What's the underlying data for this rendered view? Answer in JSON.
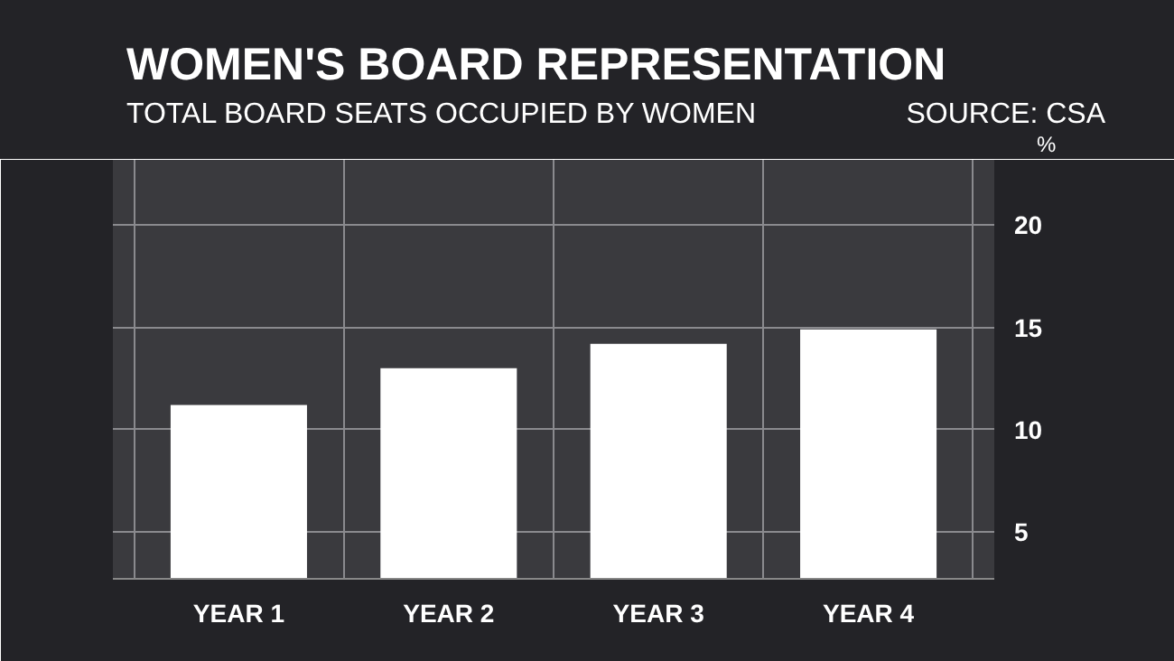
{
  "chart_data": {
    "type": "bar",
    "title": "WOMEN'S BOARD REPRESENTATION",
    "subtitle": "TOTAL BOARD SEATS OCCUPIED BY WOMEN",
    "annotations": [
      "SOURCE: CSA"
    ],
    "ylabel": "%",
    "categories": [
      "YEAR 1",
      "YEAR 2",
      "YEAR 3",
      "YEAR 4"
    ],
    "values": [
      11.2,
      13.0,
      14.2,
      14.9
    ],
    "color": "#ffffff",
    "ylim": [
      2.7,
      23.2
    ],
    "yticks": [
      5,
      10,
      15,
      20
    ],
    "grid": true
  }
}
